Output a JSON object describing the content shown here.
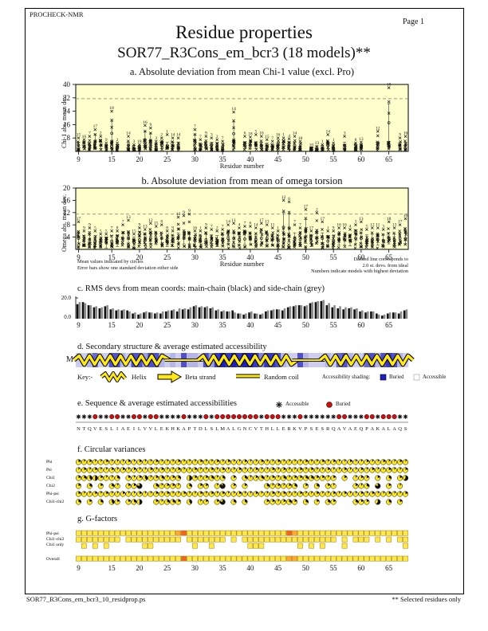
{
  "header": {
    "app": "PROCHECK-NMR",
    "page": "Page  1",
    "title": "Residue properties",
    "subtitle": "SOR77_R3Cons_em_bcr3 (18 models)**"
  },
  "footer": {
    "filename": "SOR77_R3Cons_em_bcr3_10_residprop.ps",
    "note": "** Selected residues only"
  },
  "notes": {
    "left1": "Mean values indicated by circles",
    "left2": "Error bars show one standard deviation either side",
    "right1": "Dashed line corresponds to",
    "right2": "2.0 st. devs. from ideal",
    "right3": "Numbers indicate models with highest deviation"
  },
  "axis": {
    "xlabel": "Residue number",
    "xticks": [
      9,
      15,
      20,
      25,
      30,
      35,
      40,
      45,
      50,
      55,
      60,
      65
    ],
    "res_start": 9,
    "res_count": 60
  },
  "chart_data": [
    {
      "id": "a",
      "type": "scatter",
      "title": "a. Absolute deviation from mean Chi-1 value (excl. Pro)",
      "ylabel": "Chi-1 abs. mean dev.",
      "yticks": [
        8,
        16,
        24,
        32,
        40
      ],
      "ylim": [
        0,
        40
      ],
      "dashed_y": 31.5,
      "points": [
        [
          9,
          8,
          "15"
        ],
        [
          10,
          7,
          "16"
        ],
        [
          11,
          9,
          "7"
        ],
        [
          12,
          13,
          "17"
        ],
        [
          13,
          9,
          "2"
        ],
        [
          14,
          5,
          "9"
        ],
        [
          15,
          24,
          "18"
        ],
        [
          16,
          5,
          "2"
        ],
        [
          18,
          9,
          "14"
        ],
        [
          19,
          4,
          "3"
        ],
        [
          20,
          4,
          "18"
        ],
        [
          21,
          15.5,
          "16"
        ],
        [
          22,
          14,
          "9"
        ],
        [
          23,
          6,
          "3"
        ],
        [
          24,
          8,
          "2"
        ],
        [
          25,
          10,
          "1"
        ],
        [
          26,
          8,
          "14"
        ],
        [
          27,
          8,
          "14"
        ],
        [
          30,
          13,
          "7"
        ],
        [
          31,
          7,
          "7"
        ],
        [
          32,
          9,
          "9"
        ],
        [
          33,
          8,
          "3"
        ],
        [
          34,
          7,
          "2"
        ],
        [
          35,
          6,
          "7"
        ],
        [
          37,
          23.5,
          "14"
        ],
        [
          39,
          9,
          "6"
        ],
        [
          40,
          8.5,
          "18"
        ],
        [
          41,
          10,
          "5"
        ],
        [
          42,
          9,
          "10"
        ],
        [
          43,
          7,
          "15"
        ],
        [
          44,
          6,
          "7"
        ],
        [
          45,
          8,
          "16"
        ],
        [
          46,
          8,
          "1"
        ],
        [
          47,
          7.5,
          "4"
        ],
        [
          48,
          9,
          "14"
        ],
        [
          49,
          6,
          "18"
        ],
        [
          51,
          2,
          "10"
        ],
        [
          52,
          3,
          "13"
        ],
        [
          53,
          4,
          "1"
        ],
        [
          54,
          10,
          "14"
        ],
        [
          55,
          5,
          "1"
        ],
        [
          57,
          9,
          "3"
        ],
        [
          59,
          5,
          "8"
        ],
        [
          60,
          5.5,
          "13"
        ],
        [
          63,
          12,
          "12"
        ],
        [
          65,
          38,
          "18"
        ],
        [
          67,
          8,
          "9"
        ],
        [
          68,
          9,
          "16"
        ]
      ]
    },
    {
      "id": "b",
      "type": "scatter",
      "title": "b. Absolute deviation from mean of omega torsion",
      "ylabel": "Omega abs. mean dev.",
      "yticks": [
        4,
        8,
        12,
        16,
        20
      ],
      "ylim": [
        0,
        20
      ],
      "dashed_y": 11.5,
      "points": [
        [
          9,
          9,
          "17"
        ],
        [
          10,
          6,
          "9"
        ],
        [
          11,
          7,
          "9"
        ],
        [
          12,
          6,
          "5"
        ],
        [
          13,
          5,
          "5"
        ],
        [
          14,
          5,
          "5"
        ],
        [
          15,
          6,
          "7"
        ],
        [
          16,
          6,
          "8"
        ],
        [
          17,
          8,
          "7"
        ],
        [
          18,
          9.5,
          "13"
        ],
        [
          19,
          5,
          "15"
        ],
        [
          20,
          7,
          "9"
        ],
        [
          21,
          6.5,
          "13"
        ],
        [
          22,
          8.5,
          "12"
        ],
        [
          23,
          7.5,
          "15"
        ],
        [
          24,
          8,
          "8"
        ],
        [
          25,
          6,
          "8"
        ],
        [
          26,
          6,
          "9"
        ],
        [
          27,
          10.5,
          "13"
        ],
        [
          28,
          11,
          "9"
        ],
        [
          29,
          11.5,
          "9"
        ],
        [
          30,
          6,
          "16"
        ],
        [
          31,
          6,
          "1"
        ],
        [
          32,
          7,
          "9"
        ],
        [
          33,
          6.5,
          "7"
        ],
        [
          34,
          6,
          "2"
        ],
        [
          35,
          6.5,
          "7"
        ],
        [
          36,
          8,
          "14"
        ],
        [
          37,
          8.5,
          "11"
        ],
        [
          38,
          7,
          "4"
        ],
        [
          39,
          7.5,
          "7"
        ],
        [
          40,
          7.5,
          "6"
        ],
        [
          41,
          7,
          "14"
        ],
        [
          42,
          8.5,
          "17"
        ],
        [
          43,
          8,
          "13"
        ],
        [
          44,
          7,
          "11"
        ],
        [
          45,
          6,
          "1"
        ],
        [
          46,
          16,
          "12"
        ],
        [
          47,
          15.5,
          "6"
        ],
        [
          48,
          8,
          "7"
        ],
        [
          49,
          7,
          "7"
        ],
        [
          50,
          13,
          "17"
        ],
        [
          51,
          6,
          "17"
        ],
        [
          52,
          12,
          "2"
        ],
        [
          53,
          9,
          "17"
        ],
        [
          54,
          6,
          "1"
        ],
        [
          55,
          6,
          "9"
        ],
        [
          56,
          7,
          "16"
        ],
        [
          57,
          7,
          "16"
        ],
        [
          58,
          6.5,
          "4"
        ],
        [
          59,
          8,
          "3"
        ],
        [
          60,
          9,
          "13"
        ],
        [
          61,
          6.5,
          "5"
        ],
        [
          62,
          7,
          "12"
        ],
        [
          63,
          7,
          "11"
        ],
        [
          64,
          6.5,
          "3"
        ],
        [
          65,
          9,
          "18"
        ],
        [
          66,
          7,
          "13"
        ],
        [
          67,
          8,
          "17"
        ],
        [
          68,
          10,
          "16"
        ]
      ]
    },
    {
      "id": "c",
      "type": "bar",
      "title": "c. RMS devs from mean coords: main-chain (black) and side-chain (grey)",
      "ylim": [
        0,
        20
      ],
      "ytick_top": "20.0",
      "ytick_bottom": "0.0",
      "main": [
        14,
        16,
        13,
        11,
        10,
        12,
        9,
        8,
        8,
        8,
        5,
        4,
        6,
        6,
        5,
        5,
        7,
        8,
        7,
        9,
        9,
        12,
        11,
        11,
        10,
        8,
        7,
        7,
        8,
        5,
        4,
        6,
        5,
        4,
        7,
        8,
        9,
        8,
        11,
        12,
        13,
        12,
        15,
        16,
        17,
        13,
        11,
        10,
        9,
        10,
        9,
        7,
        6,
        7,
        5,
        3,
        5,
        6,
        5,
        8
      ],
      "side": [
        16,
        15,
        13,
        12,
        11,
        13,
        10,
        9,
        9,
        7,
        6,
        5,
        7,
        6,
        6,
        7,
        8,
        9,
        10,
        10,
        11,
        13,
        12,
        12,
        11,
        9,
        8,
        7,
        6,
        5,
        5,
        7,
        5,
        5,
        8,
        9,
        9,
        10,
        12,
        13,
        13,
        13,
        16,
        17,
        18,
        15,
        13,
        12,
        11,
        11,
        10,
        8,
        7,
        7,
        4,
        4,
        6,
        6,
        7,
        9
      ]
    }
  ],
  "structure": {
    "title": "d. Secondary structure & average estimated accessibility",
    "left_label": "M",
    "segments": [
      [
        "helix",
        8.6,
        25
      ],
      [
        "coil",
        25,
        31
      ],
      [
        "helix",
        31,
        48
      ],
      [
        "coil",
        48,
        53
      ],
      [
        "helix",
        53,
        68.9
      ]
    ],
    "shading": "223622773277477323273327489898998588732273222326732267378732",
    "key": {
      "prefix": "Key:-",
      "helix": "Helix",
      "beta": "Beta strand",
      "coil": "Random coil",
      "shading_label": "Accessibility shading:",
      "buried": "Buried",
      "accessible": "Accessible"
    }
  },
  "sequence": {
    "title": "e. Sequence & average estimated accessibilities",
    "legend_accessible": "Accessible",
    "legend_buried": "Buried",
    "residues": "NTQVESLIAEILVVLEKHKAPTDLSLMALGNCVTHLLERKVPSESRQAVAEQPAKALAQS",
    "access": "aaabaabbaabbabbaaaabaaababbbbbbbbabbbaaabaaaaaabbaaabbabbbaa"
  },
  "variances": {
    "title": "f. Circular variances",
    "rows": [
      {
        "label": "Phi",
        "pattern": "212112111212112111211121121211211211211112112121121121121121"
      },
      {
        "label": "Psi",
        "pattern": "121211212121121211211211212112112112121121211211211212112112"
      },
      {
        "label": "Chi1",
        "pattern": "23452113-2124123123-5212313-2-31231213122332212-2-122-2-3-26"
      },
      {
        "label": "Chi2",
        "pattern": "2-3-2-31-228--31221-3-22-19-2-2---312123-2-3-21---213-8-2-1-"
      },
      {
        "label": "Phi-psi",
        "pattern": "211212112112112121121121212112112112121121121121211212112112"
      },
      {
        "label": "Chi1-chi2",
        "pattern": "3-2-3-42-235--21332-4-12-28-3-3---221232-3-2-32---322-6-3-2-"
      }
    ]
  },
  "gfactors": {
    "title": "g. G-factors",
    "rows": [
      {
        "label": "Phi-psi",
        "pattern": "yyyyyyyyyyyyyyyyyyoOyyyyyyyyyyyyyyyyyyOoyyyyyyyyyyyyyyyyyyyy"
      },
      {
        "label": "Chi1-chi2",
        "pattern": "yyyyyyyy-yyyyyyyyyy-yyyyyyy-y-yyyyyyyyyyyyyyyyy-y-yyy-y-y-yy"
      },
      {
        "label": "Chi1 only",
        "pattern": "-y-y-y------yy-------y--y------yyy------y-y-y---y----------y"
      },
      {
        "label": "Overall",
        "pattern": "yyyyyyyyyyyyyyyyyyyOyyyyyyyyyyyyyyyyyyooyyyyyyyyyyyyyyyyyyyy"
      }
    ],
    "colors": {
      "y": "#FFE94A",
      "o": "#FFA933",
      "O": "#F2641F"
    }
  },
  "colors": {
    "plot_bg": "#FFFFCC",
    "buried_blue": "#1E1EBE",
    "buried_red": "#CC1111",
    "circle_yellow": "#FFE817",
    "mark": "#111111"
  }
}
